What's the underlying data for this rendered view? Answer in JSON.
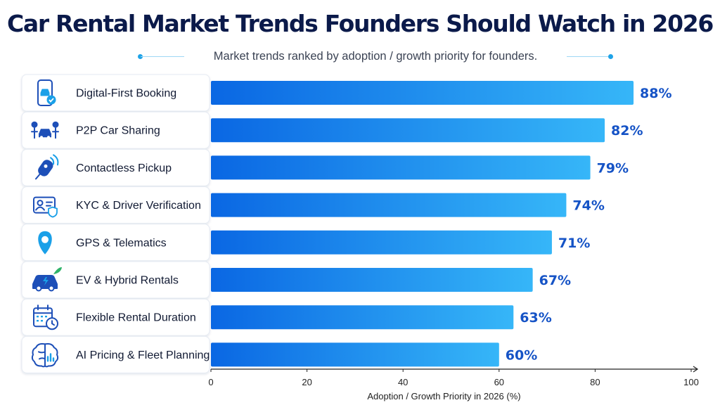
{
  "title": "Car Rental Market Trends Founders Should Watch in 2026",
  "subtitle": "Market trends ranked by adoption / growth priority for founders.",
  "colors": {
    "bar_start": "#0a67e3",
    "bar_end": "#36b6f8",
    "value_text": "#1553c6",
    "title_text": "#0b1a4a"
  },
  "chart_data": {
    "type": "bar",
    "orientation": "horizontal",
    "categories": [
      "Digital-First Booking",
      "P2P Car Sharing",
      "Contactless Pickup",
      "KYC & Driver Verification",
      "GPS & Telematics",
      "EV & Hybrid Rentals",
      "Flexible Rental Duration",
      "AI Pricing & Fleet Planning"
    ],
    "values": [
      88,
      82,
      79,
      74,
      71,
      67,
      63,
      60
    ],
    "value_labels": [
      "88%",
      "82%",
      "79%",
      "74%",
      "71%",
      "67%",
      "63%",
      "60%"
    ],
    "icons": [
      "smartphone-car-icon",
      "people-car-icon",
      "car-key-icon",
      "id-card-icon",
      "location-pin-icon",
      "electric-car-icon",
      "calendar-clock-icon",
      "ai-brain-icon"
    ],
    "xlabel": "Adoption / Growth Priority in 2026 (%)",
    "ylabel": "",
    "xlim": [
      0,
      100
    ],
    "xticks": [
      0,
      20,
      40,
      60,
      80,
      100
    ],
    "grid": false
  }
}
